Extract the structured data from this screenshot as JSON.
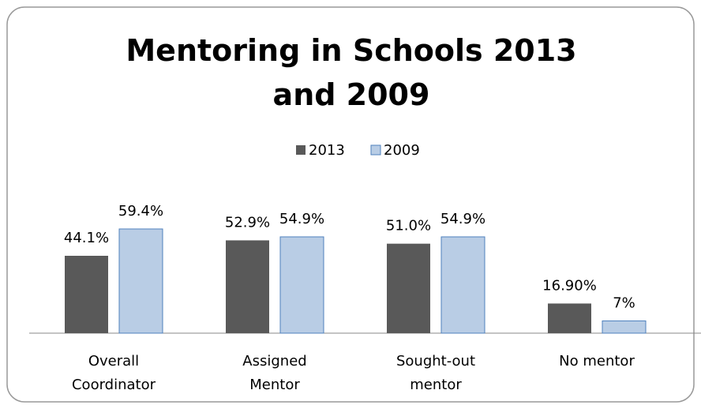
{
  "chart_data": {
    "type": "bar",
    "title": "Mentoring in Schools 2013 and 2009",
    "categories": [
      "Overall Coordinator",
      "Assigned Mentor",
      "Sought-out mentor",
      "No mentor"
    ],
    "series": [
      {
        "name": "2013",
        "color": "#595959",
        "values": [
          44.1,
          52.9,
          51.0,
          16.9
        ],
        "value_labels": [
          "44.1%",
          "52.9%",
          "51.0%",
          "16.90%"
        ]
      },
      {
        "name": "2009",
        "color": "#b9cde5",
        "values": [
          59.4,
          54.9,
          54.9,
          7
        ],
        "value_labels": [
          "59.4%",
          "54.9%",
          "54.9%",
          "7%"
        ]
      }
    ],
    "legend": "top"
  }
}
